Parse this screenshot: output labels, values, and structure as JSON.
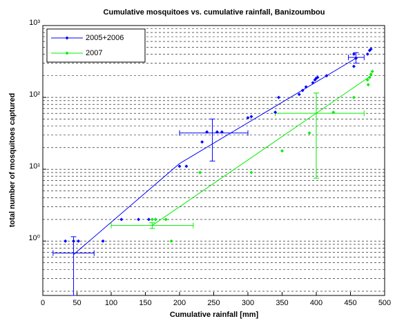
{
  "chart_data": {
    "type": "scatter",
    "title": "Cumulative mosquitoes vs. cumulative rainfall, Banizoumbou",
    "xlabel": "Cumulative rainfall [mm]",
    "ylabel": "total number of mosquitoes captured",
    "xlim": [
      0,
      500
    ],
    "xticks": [
      0,
      50,
      100,
      150,
      200,
      250,
      300,
      350,
      400,
      450,
      500
    ],
    "ylim": [
      0.175,
      1000
    ],
    "yscale": "log",
    "yticks": [
      {
        "value": 1,
        "label": "10⁰"
      },
      {
        "value": 10,
        "label": "10¹"
      },
      {
        "value": 100,
        "label": "10²"
      },
      {
        "value": 1000,
        "label": "10³"
      }
    ],
    "yminorticks": [
      0.2,
      0.3,
      0.4,
      0.5,
      0.6,
      0.7,
      0.8,
      0.9,
      2,
      3,
      4,
      5,
      6,
      7,
      8,
      9,
      20,
      30,
      40,
      50,
      60,
      70,
      80,
      90,
      200,
      300,
      400,
      500,
      600,
      700,
      800,
      900
    ],
    "grid": true,
    "legend": "upper left",
    "series": [
      {
        "name": "2005+2006",
        "color": "#0000ff",
        "x": [
          33,
          45,
          52,
          88,
          115,
          140,
          155,
          165,
          200,
          210,
          233,
          240,
          255,
          262,
          300,
          305,
          340,
          345,
          375,
          380,
          385,
          395,
          398,
          400,
          402,
          415,
          455,
          455,
          458,
          475,
          478,
          480
        ],
        "values": [
          1,
          1,
          1,
          1,
          2,
          2,
          2,
          2,
          11,
          11,
          24,
          33,
          33,
          33,
          52,
          54,
          62,
          100,
          110,
          125,
          140,
          160,
          175,
          185,
          190,
          200,
          400,
          270,
          350,
          400,
          450,
          470
        ]
      },
      {
        "name": "2007",
        "color": "#00ee00",
        "x": [
          160,
          165,
          180,
          188,
          230,
          305,
          350,
          390,
          425,
          455,
          475,
          476,
          478,
          480,
          482
        ],
        "values": [
          2,
          2,
          2,
          1,
          9,
          9,
          18,
          32,
          62,
          100,
          175,
          150,
          190,
          210,
          230
        ]
      }
    ],
    "fits": [
      {
        "color": "#0000ff",
        "x": [
          45,
          200,
          460
        ],
        "values": [
          0.65,
          12,
          360
        ]
      },
      {
        "color": "#00ee00",
        "x": [
          160,
          480
        ],
        "values": [
          1.65,
          200
        ]
      }
    ],
    "errorbars": [
      {
        "color": "#0000ff",
        "x": 45,
        "y": 0.68,
        "xlow": 15,
        "xhigh": 75,
        "ylow": 0.175,
        "yhigh": 1.15
      },
      {
        "color": "#0000ff",
        "x": 248,
        "y": 32,
        "xlow": 200,
        "xhigh": 300,
        "ylow": 13,
        "yhigh": 50
      },
      {
        "color": "#0000ff",
        "x": 458,
        "y": 360,
        "xlow": 447,
        "xhigh": 470,
        "ylow": 300,
        "yhigh": 420
      },
      {
        "color": "#00ee00",
        "x": 160,
        "y": 1.65,
        "xlow": 100,
        "xhigh": 220,
        "ylow": 1.5,
        "yhigh": 1.8
      },
      {
        "color": "#00ee00",
        "x": 400,
        "y": 60,
        "xlow": 340,
        "xhigh": 470,
        "ylow": 7.5,
        "yhigh": 115
      }
    ]
  }
}
